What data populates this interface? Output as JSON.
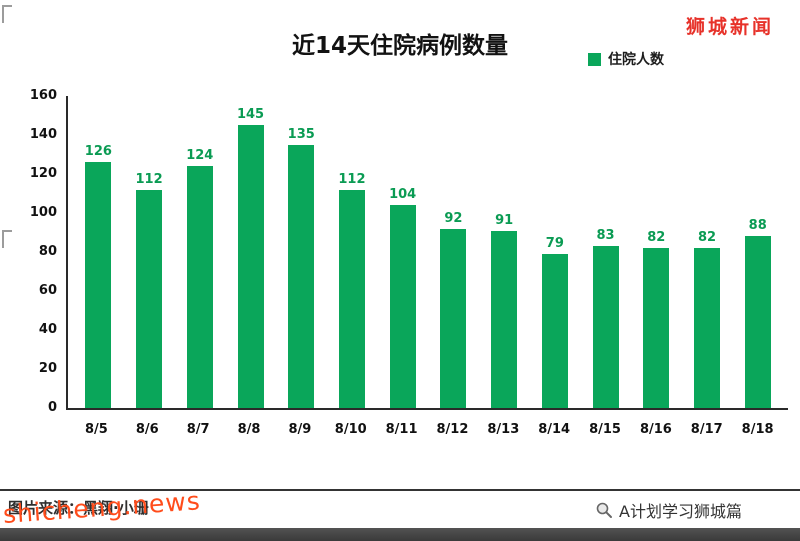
{
  "page": {
    "brand": "狮城新闻",
    "watermark": "shicheng.news",
    "caption": "图片来源：黑翔·小珊",
    "footer_label": "A计划学习狮城篇"
  },
  "chart_data": {
    "type": "bar",
    "title": "近14天住院病例数量",
    "legend": [
      "住院人数"
    ],
    "categories": [
      "8/5",
      "8/6",
      "8/7",
      "8/8",
      "8/9",
      "8/10",
      "8/11",
      "8/12",
      "8/13",
      "8/14",
      "8/15",
      "8/16",
      "8/17",
      "8/18"
    ],
    "values": [
      126,
      112,
      124,
      145,
      135,
      112,
      104,
      92,
      91,
      79,
      83,
      82,
      82,
      88
    ],
    "xlabel": "",
    "ylabel": "",
    "ylim": [
      0,
      160
    ],
    "ytick_step": 20,
    "bar_color": "#0aa65a",
    "value_label_color": "#0a9b53",
    "grid": false,
    "legend_position": "top-right"
  }
}
